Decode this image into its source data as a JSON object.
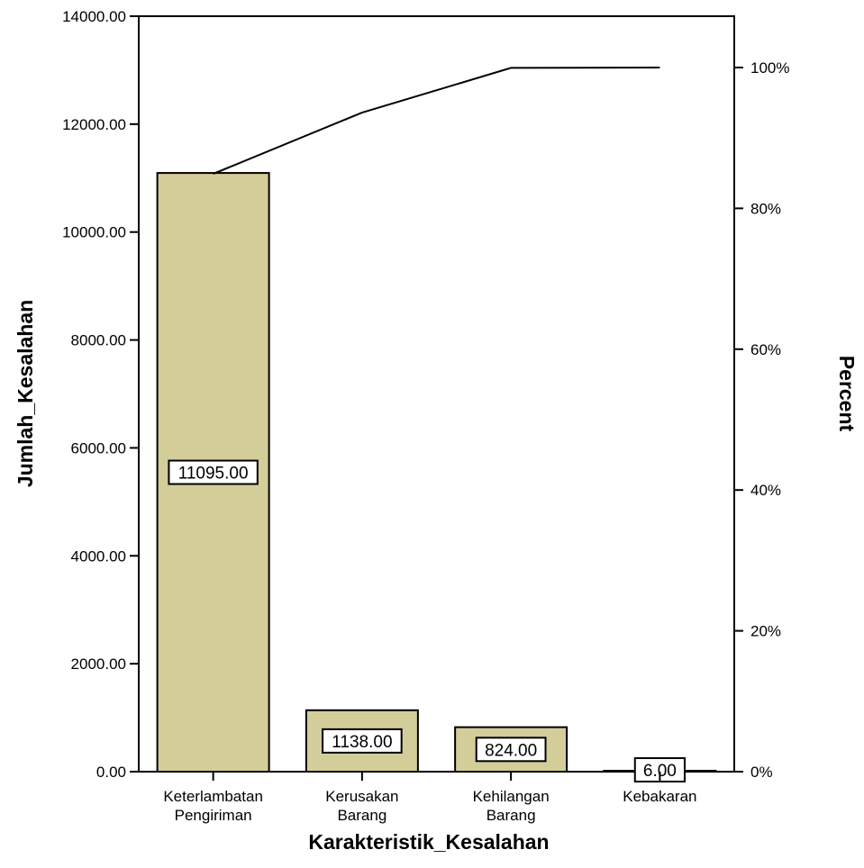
{
  "chart_data": {
    "type": "bar",
    "title": "",
    "xlabel": "Karakteristik_Kesalahan",
    "ylabel": "Jumlah_Kesalahan",
    "y2label": "Percent",
    "categories": [
      [
        "Keterlambatan",
        "Pengiriman"
      ],
      [
        "Kerusakan",
        "Barang"
      ],
      [
        "Kehilangan",
        "Barang"
      ],
      [
        "Kebakaran"
      ]
    ],
    "values": [
      11095,
      1138,
      824,
      6
    ],
    "data_labels": [
      "11095.00",
      "1138.00",
      "824.00",
      "6.00"
    ],
    "ylim": [
      0,
      14000
    ],
    "yticks": [
      "0.00",
      "2000.00",
      "4000.00",
      "6000.00",
      "8000.00",
      "10000.00",
      "12000.00",
      "14000.00"
    ],
    "y2lim": [
      0,
      100
    ],
    "y2ticks": [
      "0%",
      "20%",
      "40%",
      "60%",
      "80%",
      "100%"
    ],
    "cumulative_percent": [
      84.9,
      93.6,
      99.95,
      100
    ],
    "bar_color": "#d3cd9a",
    "line_color": "#000000",
    "grid": false,
    "legend": "none"
  }
}
